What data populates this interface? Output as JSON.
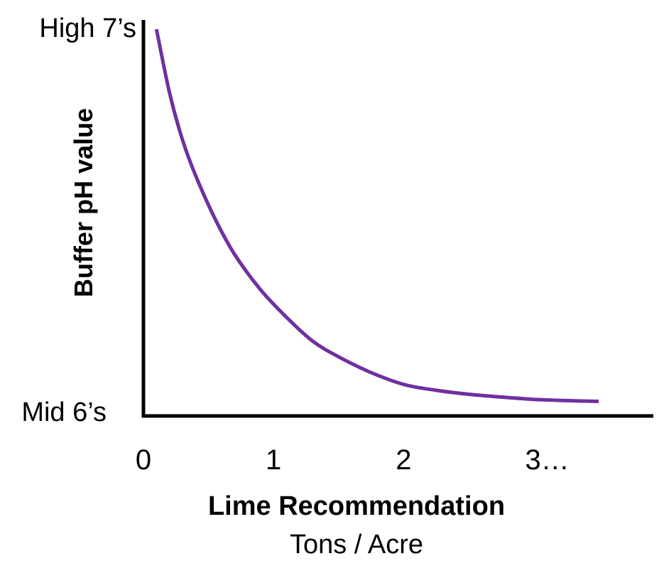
{
  "chart_data": {
    "type": "line",
    "title": "",
    "xlabel": "Lime Recommendation",
    "xlabel_sub": "Tons / Acre",
    "ylabel": "Buffer pH value",
    "x_ticks": [
      "0",
      "1",
      "2",
      "3…"
    ],
    "x_tick_values": [
      0,
      1,
      2,
      3
    ],
    "y_ticks": [
      "Mid 6’s",
      "High 7’s"
    ],
    "xlim": [
      0,
      3.92
    ],
    "ylim": [
      0,
      1
    ],
    "grid": false,
    "legend": "none",
    "series": [
      {
        "color": "#7030A0",
        "x": [
          0.1,
          0.2,
          0.3,
          0.4,
          0.55,
          0.7,
          0.9,
          1.1,
          1.3,
          1.5,
          1.75,
          2.0,
          2.25,
          2.5,
          2.75,
          3.0,
          3.25,
          3.5
        ],
        "y": [
          0.98,
          0.82,
          0.7,
          0.61,
          0.5,
          0.41,
          0.32,
          0.25,
          0.19,
          0.15,
          0.11,
          0.08,
          0.065,
          0.055,
          0.048,
          0.042,
          0.039,
          0.037
        ]
      }
    ],
    "axis_color": "#000000"
  }
}
